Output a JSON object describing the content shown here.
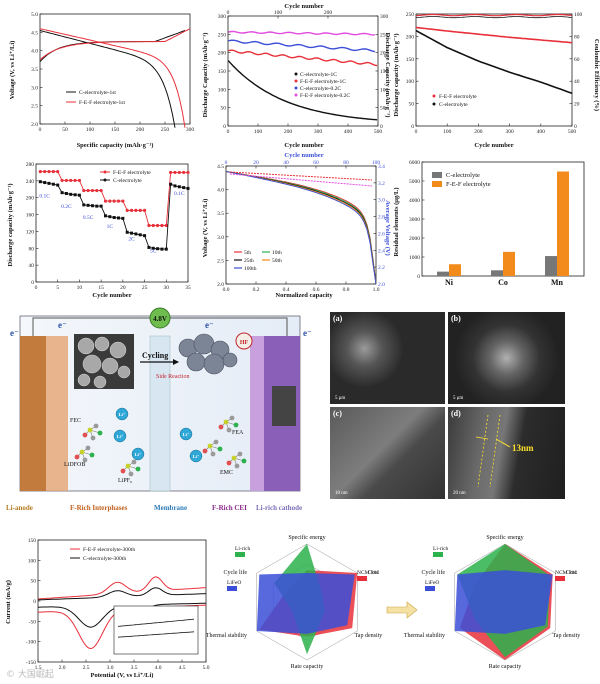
{
  "colors": {
    "red": "#e8303a",
    "black": "#111111",
    "blue": "#3b4fd8",
    "pink": "#e24ce0",
    "green": "#2bb24c",
    "orange": "#f28a1c",
    "gray": "#777777"
  },
  "panelA": {
    "ylabel": "Voltage (V, vs Li⁺/Li)",
    "xlabel": "Specific capacity (mAh·g⁻¹)",
    "xticks": [
      "0",
      "50",
      "100",
      "150",
      "200",
      "250",
      "300"
    ],
    "yticks": [
      "2.0",
      "2.5",
      "3.0",
      "3.5",
      "4.0",
      "4.5",
      "5.0"
    ],
    "legend": [
      "C-electrolyte-1st",
      "F-E-F electrolyte-1st"
    ]
  },
  "panelB": {
    "toplabel": "Cycle number",
    "xlabel": "Cycle number",
    "ylabel": "Discharge Capacity (mAh·g⁻¹)",
    "y2label": "Discharge Capacity (mAh·g⁻¹)",
    "xticks": [
      "0",
      "100",
      "200",
      "300",
      "400",
      "500"
    ],
    "topticks": [
      "0",
      "100",
      "200"
    ],
    "yticks": [
      "0",
      "50",
      "100",
      "150",
      "200",
      "250",
      "300"
    ],
    "legend": [
      "C-electrolyte-1C",
      "F-E-F electrolyte-1C",
      "C-electrolyte-0.2C",
      "F-E-F electrolyte-0.2C"
    ]
  },
  "panelC": {
    "xlabel": "Cycle number",
    "ylabel": "Discharge capacity (mAh·g⁻¹)",
    "y2label": "Coulombic Efficiency (%)",
    "xticks": [
      "0",
      "100",
      "200",
      "300",
      "400",
      "500"
    ],
    "yticks": [
      "0",
      "50",
      "100",
      "150",
      "200",
      "250"
    ],
    "y2ticks": [
      "0",
      "20",
      "40",
      "60",
      "80",
      "100"
    ],
    "legend": [
      "F-E-F electrolyte",
      "C-electrolyte"
    ]
  },
  "panelD": {
    "xlabel": "Cycle number",
    "ylabel": "Discharge capacity (mAh·g⁻¹)",
    "xticks": [
      "0",
      "5",
      "10",
      "15",
      "20",
      "25",
      "30",
      "35"
    ],
    "yticks": [
      "0",
      "40",
      "80",
      "120",
      "160",
      "200",
      "240",
      "280"
    ],
    "legend": [
      "F-E-F electrolyte",
      "C-electrolyte"
    ],
    "rates": [
      "0.1C",
      "0.2C",
      "0.5C",
      "1C",
      "2C",
      "5C",
      "0.1C"
    ]
  },
  "panelE": {
    "toplabel": "Cycle number",
    "xlabel": "Normalized capacity",
    "ylabel": "Voltage (V, vs Li⁺/Li)",
    "y2label": "Average Voltage (V)",
    "xticks": [
      "0.0",
      "0.2",
      "0.4",
      "0.6",
      "0.8",
      "1.0"
    ],
    "topticks": [
      "0",
      "20",
      "40",
      "60",
      "80",
      "100"
    ],
    "yticks": [
      "2.0",
      "2.5",
      "3.0",
      "3.5",
      "4.0",
      "4.5"
    ],
    "y2ticks": [
      "2.0",
      "2.2",
      "2.4",
      "2.6",
      "2.8",
      "3.0",
      "3.2",
      "3.4"
    ],
    "legend": [
      "5th",
      "10th",
      "25th",
      "50th",
      "100th"
    ]
  },
  "panelF": {
    "ylabel": "Residual elements (μg/L)",
    "yticks": [
      "0",
      "1000",
      "2000",
      "3000",
      "4000",
      "5000",
      "6000"
    ],
    "legend": [
      "C-electrolyte",
      "F-E-F electrolyte"
    ]
  },
  "chart_data": [
    {
      "type": "bar",
      "categories": [
        "Ni",
        "Co",
        "Mn"
      ],
      "ylim": [
        0,
        6000
      ],
      "ylabel": "Residual elements (μg/L)",
      "series": [
        {
          "name": "C-electrolyte",
          "values": [
            230,
            300,
            1050
          ]
        },
        {
          "name": "F-E-F electrolyte",
          "values": [
            620,
            1270,
            5500
          ]
        }
      ]
    },
    {
      "type": "line",
      "xlabel": "Cycle number",
      "xlim": [
        0,
        35
      ],
      "ylim": [
        0,
        280
      ],
      "ylabel": "Discharge capacity (mAh·g⁻¹)",
      "series": [
        {
          "name": "F-E-F electrolyte",
          "values": [
            262,
            262,
            262,
            262,
            262,
            241,
            241,
            241,
            241,
            241,
            217,
            217,
            217,
            217,
            217,
            192,
            192,
            192,
            192,
            192,
            170,
            170,
            170,
            170,
            170,
            134,
            134,
            134,
            134,
            134,
            260,
            260,
            260,
            260,
            260
          ]
        },
        {
          "name": "C-electrolyte",
          "values": [
            238,
            236,
            234,
            232,
            230,
            212,
            210,
            208,
            207,
            206,
            183,
            182,
            181,
            180,
            180,
            157,
            155,
            153,
            152,
            151,
            118,
            116,
            114,
            112,
            110,
            82,
            80,
            79,
            78,
            78,
            232,
            228,
            226,
            224,
            222
          ]
        }
      ]
    },
    {
      "type": "line",
      "xlabel": "Cycle number",
      "xlim": [
        0,
        500
      ],
      "ylim": [
        0,
        250
      ],
      "ylabel": "Discharge capacity (mAh·g⁻¹)",
      "series": [
        {
          "name": "F-E-F electrolyte",
          "x": [
            0,
            100,
            200,
            300,
            400,
            500
          ],
          "values": [
            220,
            212,
            205,
            198,
            192,
            186
          ]
        },
        {
          "name": "C-electrolyte",
          "x": [
            0,
            100,
            200,
            300,
            400,
            500
          ],
          "values": [
            213,
            175,
            145,
            120,
            98,
            73
          ]
        }
      ]
    }
  ],
  "schematic": {
    "voltage": "4.8V",
    "cycling": "Cycling",
    "side": "Side Reaction",
    "hf": "HF",
    "labels": [
      "FEC",
      "LiDFOB",
      "LiPF₆",
      "FEA",
      "EMC"
    ],
    "bottom": [
      "Li-anode",
      "F-Rich Interphases",
      "Membrane",
      "F-Rich CEI",
      "Li-rich cathode"
    ],
    "electron": "e⁻",
    "li": "Li⁺"
  },
  "sem": [
    {
      "letter": "(a)",
      "scale": "5 μm"
    },
    {
      "letter": "(b)",
      "scale": "5 μm"
    },
    {
      "letter": "(c)",
      "scale": "10 nm"
    },
    {
      "letter": "(d)",
      "scale": "20 nm",
      "measure": "13nm"
    }
  ],
  "panelG": {
    "ylabel": "Current (mA/g)",
    "xlabel": "Potential (V, vs Li⁺/Li)",
    "xticks": [
      "1.5",
      "2.0",
      "2.5",
      "3.0",
      "3.5",
      "4.0",
      "4.5",
      "5.0"
    ],
    "yticks": [
      "-150",
      "-100",
      "-50",
      "0",
      "50",
      "100",
      "150"
    ],
    "legend": [
      "F-E-F electrolyte-300th",
      "C-electrolyte-300th"
    ]
  },
  "radar": {
    "axes": [
      "Specific energy",
      "Cost",
      "Tap density",
      "Rate capacity",
      "Thermal stability",
      "Cycle life"
    ],
    "legend": [
      "Li-rich",
      "NCM 811",
      "LiFeO"
    ]
  },
  "watermark": "© 大国崛起"
}
